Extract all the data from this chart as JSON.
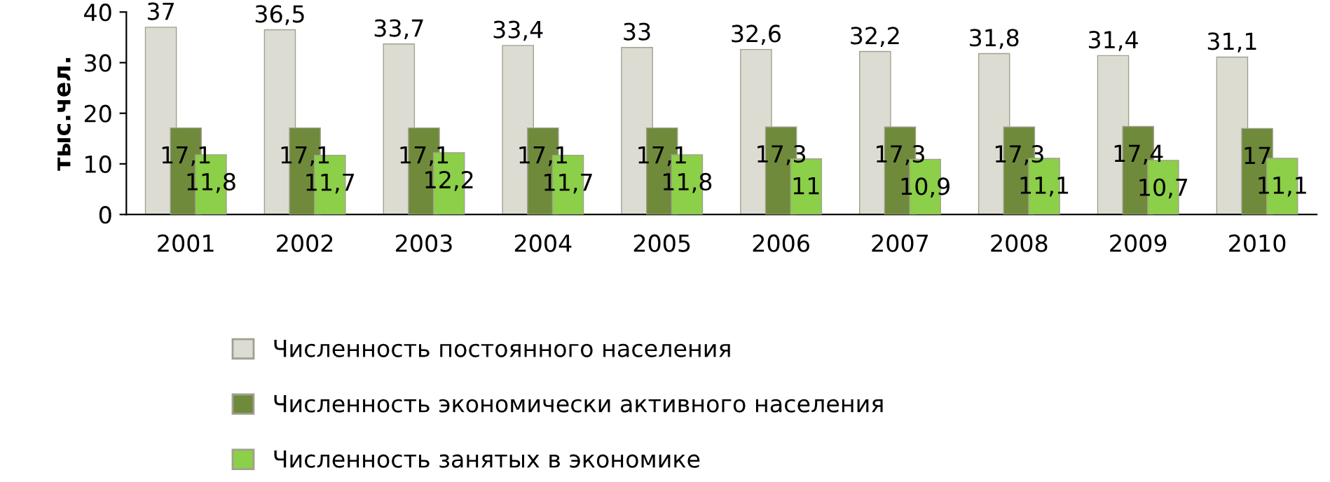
{
  "chart_data": {
    "type": "bar",
    "ylabel": "тыс.чел.",
    "categories": [
      "2001",
      "2002",
      "2003",
      "2004",
      "2005",
      "2006",
      "2007",
      "2008",
      "2009",
      "2010"
    ],
    "series": [
      {
        "name": "Численность постоянного населения",
        "color": "#dcdcd2",
        "values": [
          37,
          36.5,
          33.7,
          33.4,
          33,
          32.6,
          32.2,
          31.8,
          31.4,
          31.1
        ],
        "value_labels": [
          "37",
          "36,5",
          "33,7",
          "33,4",
          "33",
          "32,6",
          "32,2",
          "31,8",
          "31,4",
          "31,1"
        ]
      },
      {
        "name": "Численность экономически активного населения",
        "color": "#6f8a3a",
        "values": [
          17.1,
          17.1,
          17.1,
          17.1,
          17.1,
          17.3,
          17.3,
          17.3,
          17.4,
          17
        ],
        "value_labels": [
          "17,1",
          "17,1",
          "17,1",
          "17,1",
          "17,1",
          "17,3",
          "17,3",
          "17,3",
          "17,4",
          "17"
        ]
      },
      {
        "name": "Численность занятых в экономике",
        "color": "#8ccf48",
        "values": [
          11.8,
          11.7,
          12.2,
          11.7,
          11.8,
          11,
          10.9,
          11.1,
          10.7,
          11.1
        ],
        "value_labels": [
          "11,8",
          "11,7",
          "12,2",
          "11,7",
          "11,8",
          "11",
          "10,9",
          "11,1",
          "10,7",
          "11,1"
        ]
      }
    ],
    "ylim": [
      0,
      40
    ],
    "yticks": [
      0,
      10,
      20,
      30,
      40
    ],
    "grid": false,
    "legend": "bottom"
  }
}
